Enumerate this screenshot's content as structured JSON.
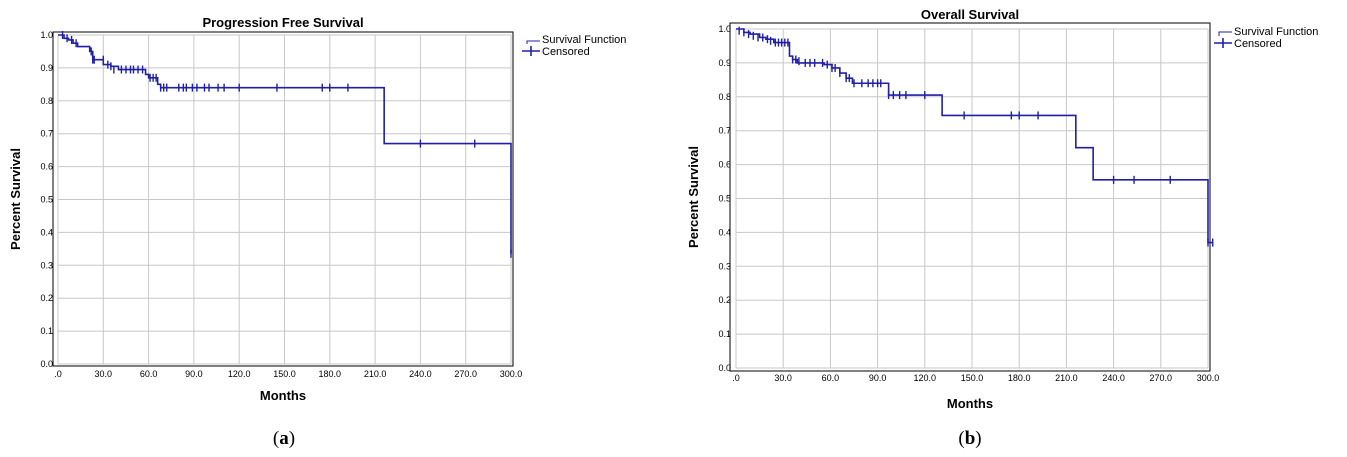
{
  "chart_data": [
    {
      "type": "line",
      "panel": "a",
      "caption_letter": "a",
      "title": "Progression Free Survival",
      "xlabel": "Months",
      "ylabel": "Percent Survival",
      "xlim": [
        0,
        300
      ],
      "ylim": [
        0,
        1
      ],
      "x_tick_labels": [
        ".0",
        "30.0",
        "60.0",
        "90.0",
        "120.0",
        "150.0",
        "180.0",
        "210.0",
        "240.0",
        "270.0",
        "300.0"
      ],
      "y_tick_labels": [
        "0.0",
        "0.1",
        "0.2",
        "0.3",
        "0.4",
        "0.5",
        "0.6",
        "0.7",
        "0.8",
        "0.9",
        "1.0"
      ],
      "grid": true,
      "legend_position": "top-right",
      "legend": [
        "Survival Function",
        "Censored"
      ],
      "color": "#1f1fa8",
      "series": [
        {
          "name": "Survival Function",
          "steps": [
            [
              0,
              1.0
            ],
            [
              4,
              0.99
            ],
            [
              7,
              0.985
            ],
            [
              10,
              0.975
            ],
            [
              13,
              0.965
            ],
            [
              21,
              0.95
            ],
            [
              23,
              0.925
            ],
            [
              30,
              0.91
            ],
            [
              35,
              0.905
            ],
            [
              40,
              0.895
            ],
            [
              58,
              0.88
            ],
            [
              60,
              0.87
            ],
            [
              66,
              0.85
            ],
            [
              68,
              0.84
            ],
            [
              216,
              0.67
            ],
            [
              300,
              0.335
            ]
          ],
          "end_x": 300
        },
        {
          "name": "Censored",
          "x": [
            3,
            6,
            9,
            12,
            22,
            23,
            24,
            30,
            33,
            35,
            37,
            42,
            45,
            48,
            50,
            53,
            56,
            61,
            63,
            65,
            68,
            70,
            72,
            80,
            83,
            85,
            89,
            92,
            97,
            100,
            106,
            110,
            120,
            145,
            175,
            180,
            192,
            240,
            276,
            300
          ],
          "y": [
            1.0,
            0.99,
            0.985,
            0.975,
            0.95,
            0.925,
            0.925,
            0.925,
            0.91,
            0.905,
            0.895,
            0.895,
            0.895,
            0.895,
            0.895,
            0.895,
            0.895,
            0.87,
            0.87,
            0.87,
            0.84,
            0.84,
            0.84,
            0.84,
            0.84,
            0.84,
            0.84,
            0.84,
            0.84,
            0.84,
            0.84,
            0.84,
            0.84,
            0.84,
            0.84,
            0.84,
            0.84,
            0.67,
            0.67,
            0.335
          ]
        }
      ]
    },
    {
      "type": "line",
      "panel": "b",
      "caption_letter": "b",
      "title": "Overall Survival",
      "xlabel": "Months",
      "ylabel": "Percent Survival",
      "xlim": [
        0,
        300
      ],
      "ylim": [
        0,
        1
      ],
      "x_tick_labels": [
        ".0",
        "30.0",
        "60.0",
        "90.0",
        "120.0",
        "150.0",
        "180.0",
        "210.0",
        "240.0",
        "270.0",
        "300.0"
      ],
      "y_tick_labels": [
        "0.0",
        "0.1",
        "0.2",
        "0.3",
        "0.4",
        "0.5",
        "0.6",
        "0.7",
        "0.8",
        "0.9",
        "1.0"
      ],
      "grid": true,
      "legend_position": "top-right",
      "legend": [
        "Survival Function",
        "Censored"
      ],
      "color": "#1f1fa8",
      "series": [
        {
          "name": "Survival Function",
          "steps": [
            [
              0,
              1.0
            ],
            [
              5,
              0.99
            ],
            [
              9,
              0.985
            ],
            [
              15,
              0.975
            ],
            [
              19,
              0.97
            ],
            [
              24,
              0.96
            ],
            [
              34,
              0.92
            ],
            [
              36,
              0.91
            ],
            [
              39,
              0.9
            ],
            [
              56,
              0.895
            ],
            [
              61,
              0.885
            ],
            [
              66,
              0.87
            ],
            [
              70,
              0.855
            ],
            [
              74,
              0.84
            ],
            [
              97,
              0.805
            ],
            [
              131,
              0.745
            ],
            [
              216,
              0.65
            ],
            [
              227,
              0.555
            ],
            [
              300,
              0.37
            ]
          ],
          "end_x": 303
        },
        {
          "name": "Censored",
          "x": [
            2,
            5,
            8,
            11,
            14,
            17,
            20,
            22,
            25,
            27,
            29,
            31,
            33,
            36,
            38,
            40,
            44,
            47,
            50,
            55,
            58,
            61,
            63,
            66,
            70,
            72,
            75,
            80,
            84,
            87,
            90,
            92,
            97,
            100,
            104,
            108,
            120,
            145,
            175,
            180,
            192,
            240,
            253,
            276,
            300,
            303
          ],
          "y": [
            0.995,
            0.99,
            0.985,
            0.98,
            0.975,
            0.975,
            0.97,
            0.965,
            0.96,
            0.96,
            0.96,
            0.96,
            0.96,
            0.91,
            0.91,
            0.905,
            0.9,
            0.9,
            0.9,
            0.9,
            0.895,
            0.885,
            0.885,
            0.87,
            0.855,
            0.855,
            0.84,
            0.84,
            0.84,
            0.84,
            0.84,
            0.84,
            0.805,
            0.805,
            0.805,
            0.805,
            0.805,
            0.745,
            0.745,
            0.745,
            0.745,
            0.555,
            0.555,
            0.555,
            0.37,
            0.37
          ]
        }
      ]
    }
  ]
}
